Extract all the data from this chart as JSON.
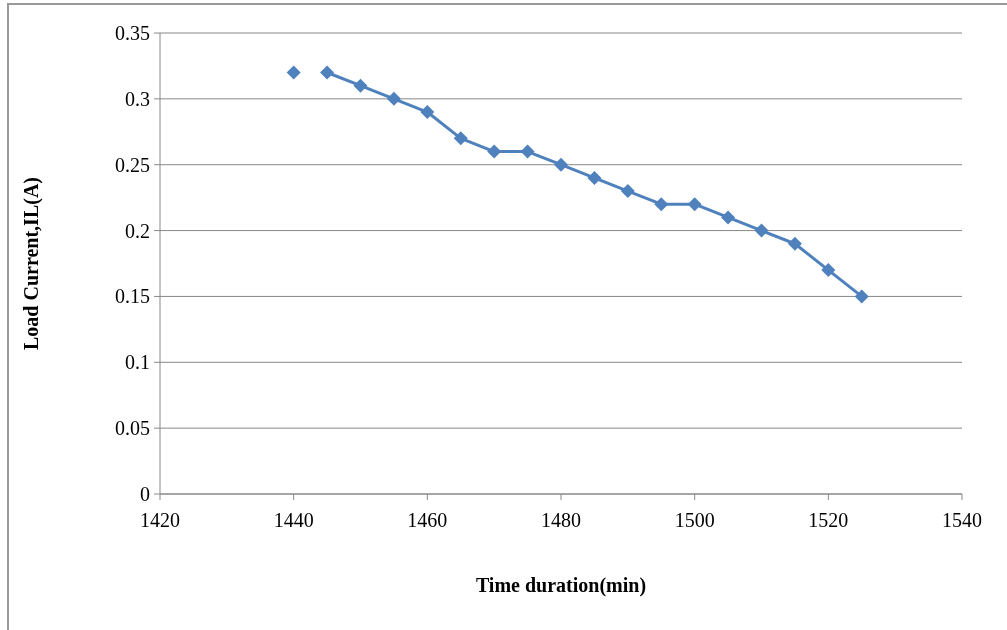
{
  "chart_data": {
    "type": "line",
    "xlabel": "Time duration(min)",
    "ylabel": "Load Current,IL(A)",
    "xlim": [
      1420,
      1540
    ],
    "xticks": [
      1420,
      1440,
      1460,
      1480,
      1500,
      1520,
      1540
    ],
    "ylim": [
      0,
      0.35
    ],
    "yticks": [
      0,
      0.05,
      0.1,
      0.15,
      0.2,
      0.25,
      0.3,
      0.35
    ],
    "grid": "y",
    "marker": "diamond",
    "line_style": "solid",
    "series": [
      {
        "type": "scatter",
        "color": "#4f81bd",
        "x": [
          1440
        ],
        "values": [
          0.32
        ]
      },
      {
        "color": "#4f81bd",
        "x": [
          1445,
          1450,
          1455,
          1460,
          1465,
          1470,
          1475,
          1480,
          1485,
          1490,
          1495,
          1500,
          1505,
          1510,
          1515,
          1520,
          1525
        ],
        "values": [
          0.32,
          0.31,
          0.3,
          0.29,
          0.27,
          0.26,
          0.26,
          0.25,
          0.24,
          0.23,
          0.22,
          0.22,
          0.21,
          0.2,
          0.19,
          0.17,
          0.15
        ]
      }
    ]
  }
}
